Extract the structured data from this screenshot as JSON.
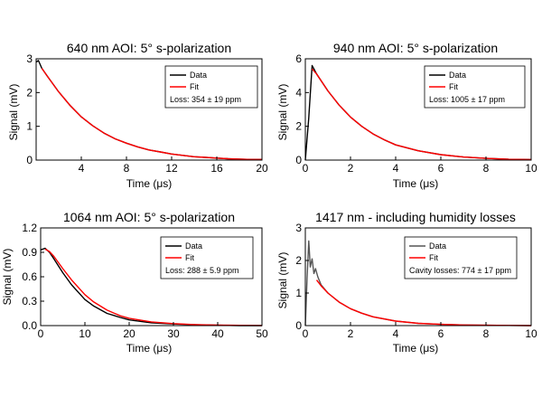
{
  "chart_data": [
    {
      "type": "line",
      "title": "640 nm AOI: 5° s-polarization",
      "xlabel": "Time (μs)",
      "ylabel": "Signal (mV)",
      "xlim": [
        0,
        20
      ],
      "ylim": [
        0,
        3
      ],
      "xticks": [
        "4",
        "8",
        "12",
        "16",
        "20"
      ],
      "yticks": [
        "0",
        "1",
        "2",
        "3"
      ],
      "legend": {
        "placement": "top-right",
        "entries": [
          "Data",
          "Fit"
        ],
        "note": "Loss: 354 ± 19 ppm"
      },
      "series": [
        {
          "name": "Data",
          "color": "#000000",
          "x": [
            0,
            0.2,
            0.5,
            1,
            2,
            3,
            4,
            5,
            6,
            7,
            8,
            9,
            10,
            11,
            12,
            13,
            14,
            15,
            16,
            17,
            18,
            19,
            20
          ],
          "y": [
            2.9,
            2.95,
            2.72,
            2.48,
            2.02,
            1.62,
            1.28,
            1.02,
            0.8,
            0.63,
            0.5,
            0.39,
            0.3,
            0.24,
            0.18,
            0.14,
            0.1,
            0.08,
            0.06,
            0.04,
            0.03,
            0.02,
            0.02
          ]
        },
        {
          "name": "Fit",
          "color": "#ff0000",
          "x": [
            0.5,
            1,
            2,
            3,
            4,
            5,
            6,
            7,
            8,
            9,
            10,
            11,
            12,
            13,
            14,
            15,
            16,
            17,
            18,
            19,
            20
          ],
          "y": [
            2.72,
            2.48,
            2.02,
            1.62,
            1.28,
            1.02,
            0.8,
            0.63,
            0.5,
            0.39,
            0.3,
            0.24,
            0.18,
            0.14,
            0.1,
            0.08,
            0.06,
            0.04,
            0.03,
            0.02,
            0.02
          ]
        }
      ]
    },
    {
      "type": "line",
      "title": "940 nm AOI: 5° s-polarization",
      "xlabel": "Time (μs)",
      "ylabel": "Signal (mV)",
      "xlim": [
        0,
        10
      ],
      "ylim": [
        0,
        6
      ],
      "xticks": [
        "0",
        "2",
        "4",
        "6",
        "8",
        "10"
      ],
      "yticks": [
        "0",
        "2",
        "4",
        "6"
      ],
      "legend": {
        "placement": "top-right",
        "entries": [
          "Data",
          "Fit"
        ],
        "note": "Loss: 1005 ± 17 ppm"
      },
      "series": [
        {
          "name": "Data",
          "color": "#000000",
          "x": [
            0,
            0.15,
            0.3,
            0.5,
            1,
            1.5,
            2,
            2.5,
            3,
            3.5,
            4,
            5,
            6,
            7,
            8,
            9,
            10
          ],
          "y": [
            0,
            2.5,
            5.6,
            5.1,
            4.1,
            3.25,
            2.55,
            2.0,
            1.55,
            1.2,
            0.9,
            0.55,
            0.32,
            0.18,
            0.1,
            0.05,
            0.03
          ]
        },
        {
          "name": "Fit",
          "color": "#ff0000",
          "x": [
            0.3,
            0.5,
            1,
            1.5,
            2,
            2.5,
            3,
            3.5,
            4,
            5,
            6,
            7,
            8,
            9,
            10
          ],
          "y": [
            5.4,
            5.1,
            4.1,
            3.25,
            2.55,
            2.0,
            1.55,
            1.2,
            0.9,
            0.55,
            0.32,
            0.18,
            0.1,
            0.05,
            0.03
          ]
        }
      ]
    },
    {
      "type": "line",
      "title": "1064 nm AOI: 5° s-polarization",
      "xlabel": "Time (μs)",
      "ylabel": "Signal (mV)",
      "xlim": [
        0,
        50
      ],
      "ylim": [
        0,
        1.2
      ],
      "xticks": [
        "0",
        "10",
        "20",
        "30",
        "40",
        "50"
      ],
      "yticks": [
        "0.0",
        "0.3",
        "0.6",
        "0.9",
        "1.2"
      ],
      "legend": {
        "placement": "top-right",
        "entries": [
          "Data",
          "Fit"
        ],
        "note": "Loss: 288 ± 5.9 ppm"
      },
      "series": [
        {
          "name": "Data",
          "color": "#000000",
          "x": [
            0,
            1,
            2,
            3,
            5,
            7,
            10,
            12,
            15,
            18,
            20,
            25,
            30,
            35,
            40,
            45,
            50
          ],
          "y": [
            0.93,
            0.95,
            0.9,
            0.82,
            0.65,
            0.5,
            0.32,
            0.24,
            0.15,
            0.1,
            0.07,
            0.035,
            0.02,
            0.01,
            0.005,
            0.0,
            0.0
          ]
        },
        {
          "name": "Fit",
          "color": "#ff0000",
          "x": [
            1,
            2,
            3,
            5,
            7,
            10,
            12,
            15,
            18,
            20,
            25,
            30,
            35,
            40,
            45,
            50
          ],
          "y": [
            0.94,
            0.91,
            0.85,
            0.7,
            0.56,
            0.38,
            0.29,
            0.19,
            0.12,
            0.09,
            0.045,
            0.025,
            0.012,
            0.006,
            0.003,
            0.001
          ]
        }
      ]
    },
    {
      "type": "line",
      "title": "1417 nm - including humidity losses",
      "xlabel": "Time (μs)",
      "ylabel": "Signal (mV)",
      "xlim": [
        0,
        10
      ],
      "ylim": [
        0,
        3
      ],
      "xticks": [
        "0",
        "2",
        "4",
        "6",
        "8",
        "10"
      ],
      "yticks": [
        "0",
        "1",
        "2",
        "3"
      ],
      "legend": {
        "placement": "top-right",
        "entries": [
          "Data",
          "Fit"
        ],
        "note": "Cavity losses: 774 ± 17 ppm"
      },
      "series": [
        {
          "name": "Data",
          "color": "#555555",
          "x": [
            0,
            0.08,
            0.15,
            0.22,
            0.3,
            0.38,
            0.45,
            0.55,
            0.7,
            1,
            1.5,
            2,
            2.5,
            3,
            4,
            5,
            6,
            7,
            8,
            9,
            10
          ],
          "y": [
            0,
            1.5,
            2.6,
            1.8,
            2.05,
            1.6,
            1.75,
            1.5,
            1.25,
            1.0,
            0.72,
            0.52,
            0.38,
            0.27,
            0.14,
            0.07,
            0.04,
            0.02,
            0.01,
            0.005,
            0.0
          ]
        },
        {
          "name": "Fit",
          "color": "#ff0000",
          "x": [
            0.5,
            0.7,
            1,
            1.5,
            2,
            2.5,
            3,
            4,
            5,
            6,
            7,
            8,
            9,
            10
          ],
          "y": [
            1.4,
            1.22,
            1.0,
            0.72,
            0.52,
            0.38,
            0.27,
            0.14,
            0.07,
            0.04,
            0.02,
            0.01,
            0.005,
            0.0
          ]
        }
      ]
    }
  ]
}
